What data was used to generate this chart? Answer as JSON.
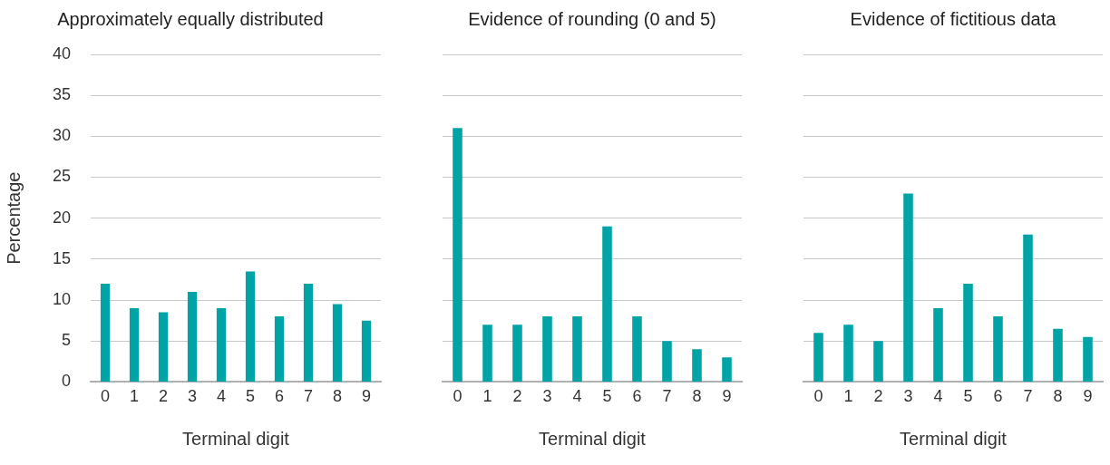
{
  "chart_data": [
    {
      "type": "bar",
      "title": "Approximately equally distributed",
      "xlabel": "Terminal digit",
      "ylabel": "Percentage",
      "categories": [
        "0",
        "1",
        "2",
        "3",
        "4",
        "5",
        "6",
        "7",
        "8",
        "9"
      ],
      "values": [
        12,
        9,
        8.5,
        11,
        9,
        13.5,
        8,
        12,
        9.5,
        7.5
      ],
      "color": "#00a3a6",
      "ylim": [
        0,
        40
      ],
      "yticks": [
        0,
        5,
        10,
        15,
        20,
        25,
        30,
        35,
        40
      ],
      "grid": "y"
    },
    {
      "type": "bar",
      "title": "Evidence of rounding (0 and 5)",
      "xlabel": "Terminal digit",
      "categories": [
        "0",
        "1",
        "2",
        "3",
        "4",
        "5",
        "6",
        "7",
        "8",
        "9"
      ],
      "values": [
        31,
        7,
        7,
        8,
        8,
        19,
        8,
        5,
        4,
        3
      ],
      "color": "#00a3a6",
      "ylim": [
        0,
        40
      ],
      "yticks": [
        0,
        5,
        10,
        15,
        20,
        25,
        30,
        35,
        40
      ],
      "grid": "y",
      "tick_labels": "x"
    },
    {
      "type": "bar",
      "title": "Evidence of fictitious data",
      "xlabel": "Terminal digit",
      "categories": [
        "0",
        "1",
        "2",
        "3",
        "4",
        "5",
        "6",
        "7",
        "8",
        "9"
      ],
      "values": [
        6,
        7,
        5,
        23,
        9,
        12,
        8,
        18,
        6.5,
        5.5
      ],
      "color": "#00a3a6",
      "ylim": [
        0,
        40
      ],
      "yticks": [
        0,
        5,
        10,
        15,
        20,
        25,
        30,
        35,
        40
      ],
      "grid": "y",
      "tick_labels": "x"
    }
  ]
}
